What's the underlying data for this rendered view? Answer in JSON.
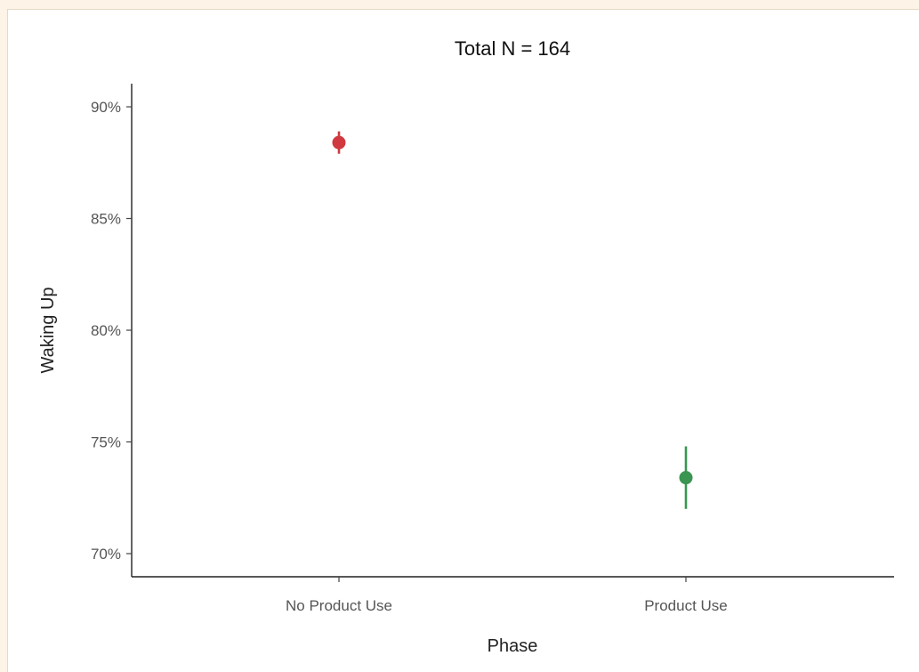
{
  "chart_data": {
    "type": "scatter",
    "title": "Total N = 164",
    "xlabel": "Phase",
    "ylabel": "Waking Up",
    "categories": [
      "No Product Use",
      "Product Use"
    ],
    "y_ticks": [
      70,
      75,
      80,
      85,
      90
    ],
    "y_tick_labels": [
      "70%",
      "75%",
      "80%",
      "85%",
      "90%"
    ],
    "ylim": [
      69,
      91
    ],
    "grid": false,
    "legend": false,
    "points": [
      {
        "category": "No Product Use",
        "value": 88.4,
        "lower": 87.9,
        "upper": 88.9,
        "color": "#d0393f"
      },
      {
        "category": "Product Use",
        "value": 73.4,
        "lower": 72.0,
        "upper": 74.8,
        "color": "#3a9550"
      }
    ]
  }
}
